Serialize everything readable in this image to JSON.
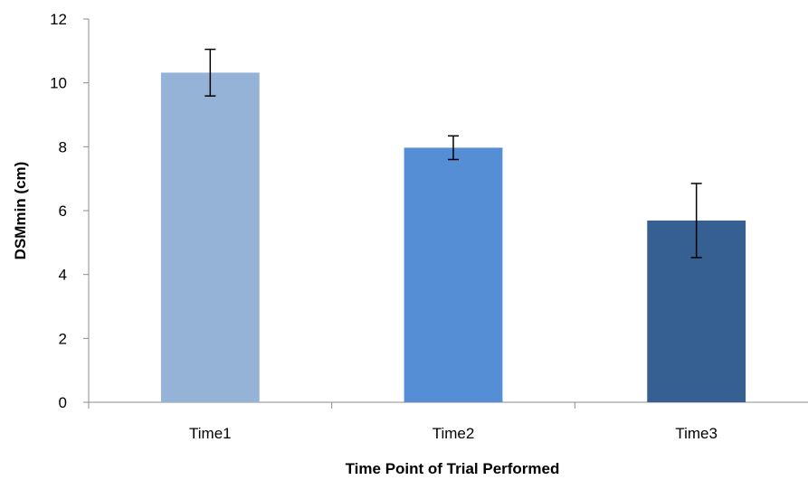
{
  "chart_data": {
    "type": "bar",
    "title": "",
    "xlabel": "Time Point of Trial Performed",
    "ylabel": "DSMmin (cm)",
    "categories": [
      "Time1",
      "Time2",
      "Time3"
    ],
    "values": [
      10.32,
      7.97,
      5.69
    ],
    "error": [
      0.73,
      0.37,
      1.16
    ],
    "colors": [
      "#95b3d7",
      "#558ed5",
      "#376092"
    ],
    "ylim": [
      0,
      12
    ],
    "yticks": [
      0,
      2,
      4,
      6,
      8,
      10,
      12
    ],
    "ytick_labels": [
      "0",
      "2",
      "4",
      "6",
      "8",
      "10",
      "12"
    ],
    "grid": false,
    "legend": "none"
  }
}
